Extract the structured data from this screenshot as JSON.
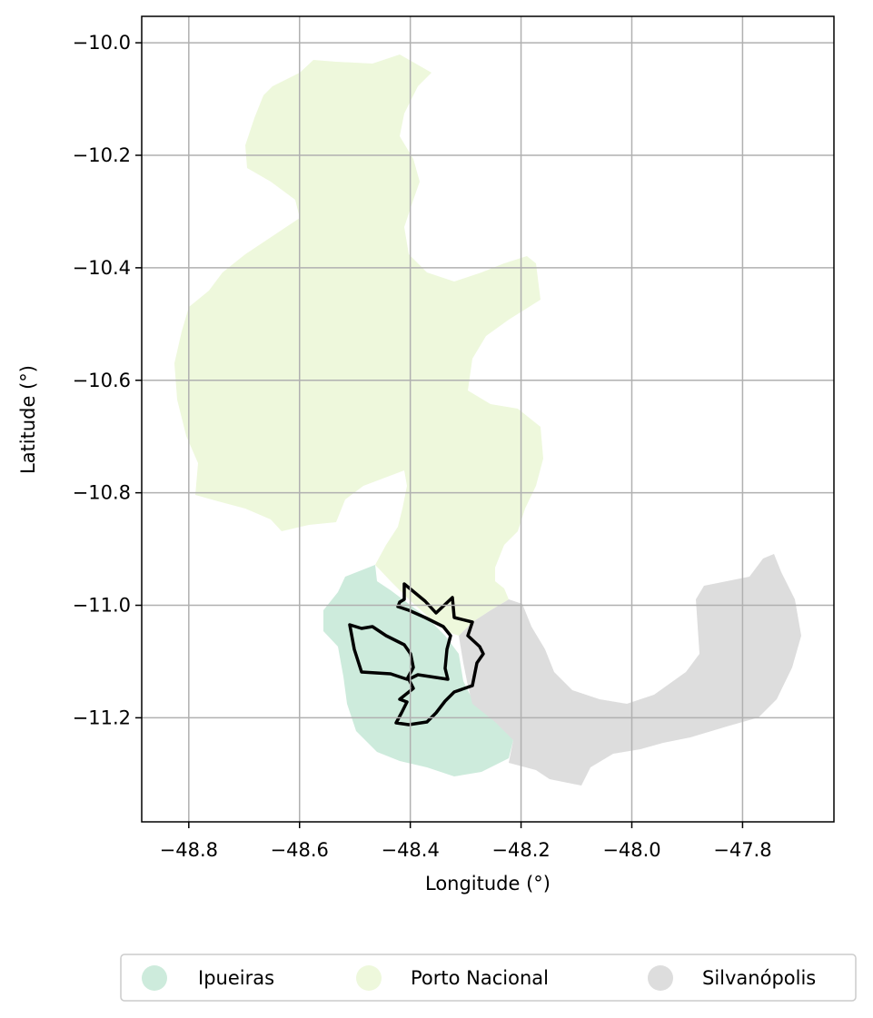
{
  "map": {
    "xlabel": "Longitude (°)",
    "ylabel": "Latitude (°)",
    "x_ticks": [
      -48.8,
      -48.6,
      -48.4,
      -48.2,
      -48.0,
      -47.8
    ],
    "x_tick_labels": [
      "−48.8",
      "−48.6",
      "−48.4",
      "−48.2",
      "−48.0",
      "−47.8"
    ],
    "y_ticks": [
      -10.0,
      -10.2,
      -10.4,
      -10.6,
      -10.8,
      -11.0,
      -11.2
    ],
    "y_tick_labels": [
      "−10.0",
      "−10.2",
      "−10.4",
      "−10.6",
      "−10.8",
      "−11.0",
      "−11.2"
    ],
    "xlim": [
      -48.885,
      -47.635
    ],
    "ylim": [
      -11.385,
      -9.953
    ],
    "grid": true,
    "legend_position": "bottom-center",
    "regions": [
      {
        "name": "Ipueiras",
        "color": "#cdebdc"
      },
      {
        "name": "Porto Nacional",
        "color": "#eef8dc"
      },
      {
        "name": "Silvanópolis",
        "color": "#dddddd"
      }
    ],
    "highlight_outline": {
      "color": "#000000"
    }
  }
}
